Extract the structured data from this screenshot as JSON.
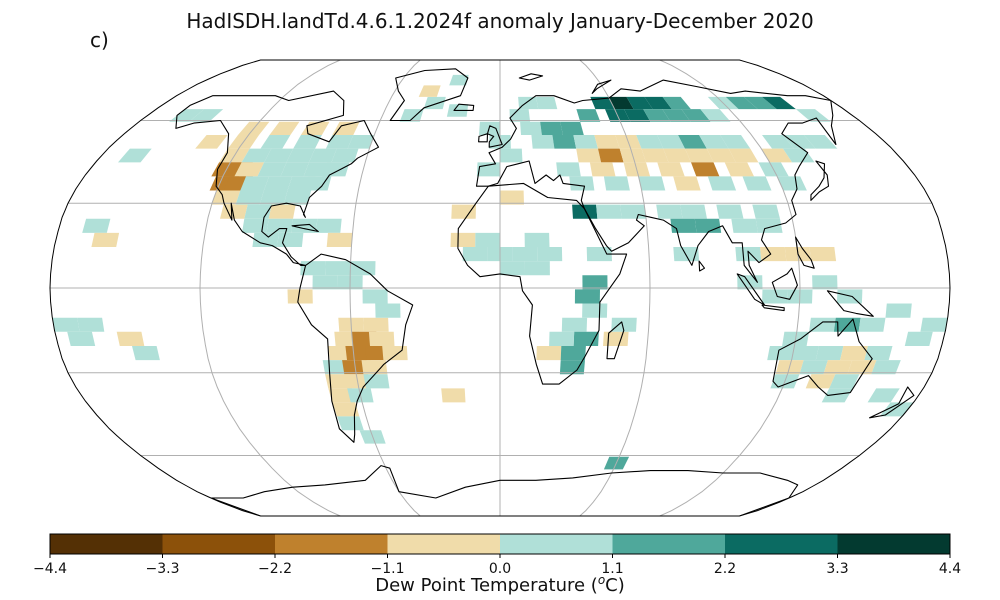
{
  "figure": {
    "title": "HadISDH.landTd.4.6.1.2024f anomaly January-December 2020",
    "panel_label": "c)"
  },
  "chart_data": {
    "type": "heatmap",
    "projection": "Robinson",
    "grid": true,
    "colorbar": {
      "label": "Dew Point Temperature (oC)",
      "label_parts": {
        "prefix": "Dew Point Temperature (",
        "superscript": "o",
        "suffix": "C)"
      },
      "ticks": [
        -4.4,
        -3.3,
        -2.2,
        -1.1,
        0.0,
        1.1,
        2.2,
        3.3,
        4.4
      ],
      "tick_labels": [
        "−4.4",
        "−3.3",
        "−2.2",
        "−1.1",
        "0.0",
        "1.1",
        "2.2",
        "3.3",
        "4.4"
      ],
      "bins": [
        {
          "from": -4.4,
          "to": -3.3,
          "color": "#543005"
        },
        {
          "from": -3.3,
          "to": -2.2,
          "color": "#8c510a"
        },
        {
          "from": -2.2,
          "to": -1.1,
          "color": "#bf812d"
        },
        {
          "from": -1.1,
          "to": 0.0,
          "color": "#f0dcaa"
        },
        {
          "from": 0.0,
          "to": 1.1,
          "color": "#b0e0d8"
        },
        {
          "from": 1.1,
          "to": 2.2,
          "color": "#4fa89b"
        },
        {
          "from": 2.2,
          "to": 3.3,
          "color": "#0b6b62"
        },
        {
          "from": 3.3,
          "to": 4.4,
          "color": "#033a30"
        }
      ]
    },
    "cells": [
      {
        "lon": -120,
        "lat": 57,
        "bin": 3
      },
      {
        "lon": -105,
        "lat": 57,
        "bin": 3
      },
      {
        "lon": -90,
        "lat": 57,
        "bin": 3
      },
      {
        "lon": -75,
        "lat": 57,
        "bin": 3
      },
      {
        "lon": -135,
        "lat": 52,
        "bin": 3
      },
      {
        "lon": -120,
        "lat": 52,
        "bin": 3
      },
      {
        "lon": -105,
        "lat": 52,
        "bin": 4
      },
      {
        "lon": -90,
        "lat": 52,
        "bin": 4
      },
      {
        "lon": -75,
        "lat": 52,
        "bin": 4
      },
      {
        "lon": -65,
        "lat": 52,
        "bin": 4
      },
      {
        "lon": -160,
        "lat": 62,
        "bin": 4
      },
      {
        "lon": -150,
        "lat": 62,
        "bin": 4
      },
      {
        "lon": -165,
        "lat": 47,
        "bin": 4
      },
      {
        "lon": -120,
        "lat": 47,
        "bin": 3
      },
      {
        "lon": -110,
        "lat": 47,
        "bin": 4
      },
      {
        "lon": -100,
        "lat": 47,
        "bin": 4
      },
      {
        "lon": -90,
        "lat": 47,
        "bin": 4
      },
      {
        "lon": -80,
        "lat": 47,
        "bin": 4
      },
      {
        "lon": -70,
        "lat": 47,
        "bin": 4
      },
      {
        "lon": -120,
        "lat": 42,
        "bin": 2
      },
      {
        "lon": -115,
        "lat": 42,
        "bin": 2
      },
      {
        "lon": -110,
        "lat": 42,
        "bin": 3
      },
      {
        "lon": -100,
        "lat": 42,
        "bin": 4
      },
      {
        "lon": -90,
        "lat": 42,
        "bin": 4
      },
      {
        "lon": -80,
        "lat": 42,
        "bin": 4
      },
      {
        "lon": -72,
        "lat": 42,
        "bin": 4
      },
      {
        "lon": -118,
        "lat": 37,
        "bin": 2
      },
      {
        "lon": -112,
        "lat": 37,
        "bin": 2
      },
      {
        "lon": -105,
        "lat": 37,
        "bin": 4
      },
      {
        "lon": -95,
        "lat": 37,
        "bin": 4
      },
      {
        "lon": -85,
        "lat": 37,
        "bin": 4
      },
      {
        "lon": -78,
        "lat": 37,
        "bin": 4
      },
      {
        "lon": -115,
        "lat": 32,
        "bin": 3
      },
      {
        "lon": -105,
        "lat": 32,
        "bin": 4
      },
      {
        "lon": -95,
        "lat": 32,
        "bin": 4
      },
      {
        "lon": -85,
        "lat": 32,
        "bin": 4
      },
      {
        "lon": -110,
        "lat": 27,
        "bin": 3
      },
      {
        "lon": -100,
        "lat": 27,
        "bin": 4
      },
      {
        "lon": -90,
        "lat": 27,
        "bin": 3
      },
      {
        "lon": -100,
        "lat": 22,
        "bin": 4
      },
      {
        "lon": -90,
        "lat": 22,
        "bin": 4
      },
      {
        "lon": -80,
        "lat": 22,
        "bin": 4
      },
      {
        "lon": -70,
        "lat": 22,
        "bin": 4
      },
      {
        "lon": -95,
        "lat": 17,
        "bin": 4
      },
      {
        "lon": -85,
        "lat": 17,
        "bin": 4
      },
      {
        "lon": -65,
        "lat": 17,
        "bin": 3
      },
      {
        "lon": -165,
        "lat": 22,
        "bin": 4
      },
      {
        "lon": -160,
        "lat": 17,
        "bin": 3
      },
      {
        "lon": -75,
        "lat": 7,
        "bin": 4
      },
      {
        "lon": -65,
        "lat": 7,
        "bin": 4
      },
      {
        "lon": -55,
        "lat": 7,
        "bin": 4
      },
      {
        "lon": -80,
        "lat": -3,
        "bin": 3
      },
      {
        "lon": -70,
        "lat": 2,
        "bin": 4
      },
      {
        "lon": -60,
        "lat": 2,
        "bin": 4
      },
      {
        "lon": -50,
        "lat": -3,
        "bin": 4
      },
      {
        "lon": -60,
        "lat": -13,
        "bin": 3
      },
      {
        "lon": -50,
        "lat": -13,
        "bin": 3
      },
      {
        "lon": -45,
        "lat": -8,
        "bin": 4
      },
      {
        "lon": -62,
        "lat": -18,
        "bin": 3
      },
      {
        "lon": -55,
        "lat": -18,
        "bin": 2
      },
      {
        "lon": -48,
        "lat": -18,
        "bin": 3
      },
      {
        "lon": -65,
        "lat": -23,
        "bin": 3
      },
      {
        "lon": -58,
        "lat": -23,
        "bin": 2
      },
      {
        "lon": -50,
        "lat": -23,
        "bin": 2
      },
      {
        "lon": -43,
        "lat": -23,
        "bin": 3
      },
      {
        "lon": -68,
        "lat": -28,
        "bin": 4
      },
      {
        "lon": -60,
        "lat": -28,
        "bin": 2
      },
      {
        "lon": -52,
        "lat": -28,
        "bin": 3
      },
      {
        "lon": -68,
        "lat": -33,
        "bin": 3
      },
      {
        "lon": -60,
        "lat": -33,
        "bin": 3
      },
      {
        "lon": -52,
        "lat": -33,
        "bin": 4
      },
      {
        "lon": -68,
        "lat": -38,
        "bin": 3
      },
      {
        "lon": -60,
        "lat": -38,
        "bin": 4
      },
      {
        "lon": -68,
        "lat": -43,
        "bin": 3
      },
      {
        "lon": -68,
        "lat": -48,
        "bin": 4
      },
      {
        "lon": -60,
        "lat": -53,
        "bin": 4
      },
      {
        "lon": -20,
        "lat": -38,
        "bin": 3
      },
      {
        "lon": -175,
        "lat": -13,
        "bin": 4
      },
      {
        "lon": -165,
        "lat": -13,
        "bin": 4
      },
      {
        "lon": -170,
        "lat": -18,
        "bin": 4
      },
      {
        "lon": -150,
        "lat": -18,
        "bin": 3
      },
      {
        "lon": -145,
        "lat": -23,
        "bin": 4
      },
      {
        "lon": -45,
        "lat": 62,
        "bin": 4
      },
      {
        "lon": -35,
        "lat": 67,
        "bin": 4
      },
      {
        "lon": -40,
        "lat": 72,
        "bin": 3
      },
      {
        "lon": -25,
        "lat": 77,
        "bin": 4
      },
      {
        "lon": -22,
        "lat": 64,
        "bin": 4
      },
      {
        "lon": -5,
        "lat": 57,
        "bin": 4
      },
      {
        "lon": 0,
        "lat": 52,
        "bin": 4
      },
      {
        "lon": 5,
        "lat": 47,
        "bin": 4
      },
      {
        "lon": -5,
        "lat": 42,
        "bin": 4
      },
      {
        "lon": 15,
        "lat": 67,
        "bin": 4
      },
      {
        "lon": 25,
        "lat": 67,
        "bin": 4
      },
      {
        "lon": 10,
        "lat": 62,
        "bin": 4
      },
      {
        "lon": 15,
        "lat": 57,
        "bin": 4
      },
      {
        "lon": 25,
        "lat": 57,
        "bin": 5
      },
      {
        "lon": 35,
        "lat": 57,
        "bin": 5
      },
      {
        "lon": 45,
        "lat": 62,
        "bin": 5
      },
      {
        "lon": 55,
        "lat": 67,
        "bin": 6
      },
      {
        "lon": 65,
        "lat": 67,
        "bin": 7
      },
      {
        "lon": 75,
        "lat": 67,
        "bin": 6
      },
      {
        "lon": 85,
        "lat": 67,
        "bin": 6
      },
      {
        "lon": 95,
        "lat": 67,
        "bin": 5
      },
      {
        "lon": 60,
        "lat": 62,
        "bin": 6
      },
      {
        "lon": 70,
        "lat": 62,
        "bin": 6
      },
      {
        "lon": 80,
        "lat": 62,
        "bin": 5
      },
      {
        "lon": 90,
        "lat": 62,
        "bin": 5
      },
      {
        "lon": 100,
        "lat": 62,
        "bin": 5
      },
      {
        "lon": 110,
        "lat": 62,
        "bin": 4
      },
      {
        "lon": 120,
        "lat": 67,
        "bin": 4
      },
      {
        "lon": 130,
        "lat": 67,
        "bin": 5
      },
      {
        "lon": 140,
        "lat": 67,
        "bin": 5
      },
      {
        "lon": 150,
        "lat": 67,
        "bin": 6
      },
      {
        "lon": 160,
        "lat": 62,
        "bin": 4
      },
      {
        "lon": 20,
        "lat": 52,
        "bin": 4
      },
      {
        "lon": 30,
        "lat": 52,
        "bin": 5
      },
      {
        "lon": 40,
        "lat": 52,
        "bin": 4
      },
      {
        "lon": 50,
        "lat": 52,
        "bin": 3
      },
      {
        "lon": 60,
        "lat": 52,
        "bin": 3
      },
      {
        "lon": 70,
        "lat": 52,
        "bin": 4
      },
      {
        "lon": 80,
        "lat": 52,
        "bin": 4
      },
      {
        "lon": 90,
        "lat": 52,
        "bin": 5
      },
      {
        "lon": 100,
        "lat": 52,
        "bin": 4
      },
      {
        "lon": 110,
        "lat": 52,
        "bin": 4
      },
      {
        "lon": 130,
        "lat": 52,
        "bin": 4
      },
      {
        "lon": 140,
        "lat": 52,
        "bin": 4
      },
      {
        "lon": 150,
        "lat": 52,
        "bin": 4
      },
      {
        "lon": 40,
        "lat": 47,
        "bin": 3
      },
      {
        "lon": 50,
        "lat": 47,
        "bin": 2
      },
      {
        "lon": 60,
        "lat": 47,
        "bin": 3
      },
      {
        "lon": 70,
        "lat": 47,
        "bin": 3
      },
      {
        "lon": 80,
        "lat": 47,
        "bin": 3
      },
      {
        "lon": 90,
        "lat": 47,
        "bin": 3
      },
      {
        "lon": 100,
        "lat": 47,
        "bin": 3
      },
      {
        "lon": 110,
        "lat": 47,
        "bin": 3
      },
      {
        "lon": 125,
        "lat": 47,
        "bin": 3
      },
      {
        "lon": 135,
        "lat": 47,
        "bin": 4
      },
      {
        "lon": 30,
        "lat": 42,
        "bin": 4
      },
      {
        "lon": 45,
        "lat": 42,
        "bin": 3
      },
      {
        "lon": 60,
        "lat": 42,
        "bin": 3
      },
      {
        "lon": 75,
        "lat": 42,
        "bin": 3
      },
      {
        "lon": 90,
        "lat": 42,
        "bin": 2
      },
      {
        "lon": 105,
        "lat": 42,
        "bin": 3
      },
      {
        "lon": 120,
        "lat": 42,
        "bin": 4
      },
      {
        "lon": 35,
        "lat": 37,
        "bin": 4
      },
      {
        "lon": 50,
        "lat": 37,
        "bin": 4
      },
      {
        "lon": 65,
        "lat": 37,
        "bin": 4
      },
      {
        "lon": 80,
        "lat": 37,
        "bin": 3
      },
      {
        "lon": 95,
        "lat": 37,
        "bin": 4
      },
      {
        "lon": 110,
        "lat": 37,
        "bin": 4
      },
      {
        "lon": 125,
        "lat": 37,
        "bin": 4
      },
      {
        "lon": -15,
        "lat": 27,
        "bin": 3
      },
      {
        "lon": 5,
        "lat": 32,
        "bin": 3
      },
      {
        "lon": 35,
        "lat": 27,
        "bin": 6
      },
      {
        "lon": 45,
        "lat": 27,
        "bin": 4
      },
      {
        "lon": 55,
        "lat": 27,
        "bin": 4
      },
      {
        "lon": 70,
        "lat": 27,
        "bin": 4
      },
      {
        "lon": 80,
        "lat": 27,
        "bin": 4
      },
      {
        "lon": 95,
        "lat": 27,
        "bin": 4
      },
      {
        "lon": 110,
        "lat": 27,
        "bin": 4
      },
      {
        "lon": -15,
        "lat": 17,
        "bin": 3
      },
      {
        "lon": -5,
        "lat": 17,
        "bin": 4
      },
      {
        "lon": 15,
        "lat": 17,
        "bin": 4
      },
      {
        "lon": 75,
        "lat": 22,
        "bin": 5
      },
      {
        "lon": 85,
        "lat": 22,
        "bin": 5
      },
      {
        "lon": 100,
        "lat": 22,
        "bin": 4
      },
      {
        "lon": 110,
        "lat": 22,
        "bin": 4
      },
      {
        "lon": -10,
        "lat": 12,
        "bin": 4
      },
      {
        "lon": 0,
        "lat": 12,
        "bin": 4
      },
      {
        "lon": 10,
        "lat": 12,
        "bin": 4
      },
      {
        "lon": 20,
        "lat": 12,
        "bin": 4
      },
      {
        "lon": 40,
        "lat": 12,
        "bin": 4
      },
      {
        "lon": 75,
        "lat": 12,
        "bin": 4
      },
      {
        "lon": 100,
        "lat": 12,
        "bin": 4
      },
      {
        "lon": 110,
        "lat": 12,
        "bin": 3
      },
      {
        "lon": 120,
        "lat": 12,
        "bin": 3
      },
      {
        "lon": 130,
        "lat": 12,
        "bin": 3
      },
      {
        "lon": 5,
        "lat": 7,
        "bin": 4
      },
      {
        "lon": 15,
        "lat": 7,
        "bin": 4
      },
      {
        "lon": 38,
        "lat": 2,
        "bin": 5
      },
      {
        "lon": 35,
        "lat": -3,
        "bin": 5
      },
      {
        "lon": 38,
        "lat": -8,
        "bin": 4
      },
      {
        "lon": 30,
        "lat": -13,
        "bin": 4
      },
      {
        "lon": 35,
        "lat": -18,
        "bin": 5
      },
      {
        "lon": 25,
        "lat": -18,
        "bin": 4
      },
      {
        "lon": 47,
        "lat": -18,
        "bin": 3
      },
      {
        "lon": 50,
        "lat": -13,
        "bin": 4
      },
      {
        "lon": 20,
        "lat": -23,
        "bin": 3
      },
      {
        "lon": 30,
        "lat": -23,
        "bin": 5
      },
      {
        "lon": 30,
        "lat": -28,
        "bin": 5
      },
      {
        "lon": 100,
        "lat": 2,
        "bin": 4
      },
      {
        "lon": 110,
        "lat": -3,
        "bin": 4
      },
      {
        "lon": 120,
        "lat": -3,
        "bin": 4
      },
      {
        "lon": 130,
        "lat": 2,
        "bin": 4
      },
      {
        "lon": 140,
        "lat": -3,
        "bin": 4
      },
      {
        "lon": 120,
        "lat": -18,
        "bin": 4
      },
      {
        "lon": 130,
        "lat": -13,
        "bin": 4
      },
      {
        "lon": 140,
        "lat": -13,
        "bin": 5
      },
      {
        "lon": 150,
        "lat": -13,
        "bin": 4
      },
      {
        "lon": 115,
        "lat": -23,
        "bin": 4
      },
      {
        "lon": 125,
        "lat": -23,
        "bin": 4
      },
      {
        "lon": 135,
        "lat": -23,
        "bin": 4
      },
      {
        "lon": 145,
        "lat": -23,
        "bin": 3
      },
      {
        "lon": 155,
        "lat": -23,
        "bin": 4
      },
      {
        "lon": 120,
        "lat": -28,
        "bin": 3
      },
      {
        "lon": 130,
        "lat": -28,
        "bin": 4
      },
      {
        "lon": 140,
        "lat": -28,
        "bin": 3
      },
      {
        "lon": 150,
        "lat": -28,
        "bin": 3
      },
      {
        "lon": 160,
        "lat": -28,
        "bin": 4
      },
      {
        "lon": 120,
        "lat": -33,
        "bin": 4
      },
      {
        "lon": 135,
        "lat": -33,
        "bin": 3
      },
      {
        "lon": 145,
        "lat": -33,
        "bin": 4
      },
      {
        "lon": 145,
        "lat": -38,
        "bin": 4
      },
      {
        "lon": 165,
        "lat": -38,
        "bin": 4
      },
      {
        "lon": 175,
        "lat": -43,
        "bin": 4
      },
      {
        "lon": 170,
        "lat": -18,
        "bin": 4
      },
      {
        "lon": 175,
        "lat": -13,
        "bin": 4
      },
      {
        "lon": 160,
        "lat": -8,
        "bin": 4
      },
      {
        "lon": 60,
        "lat": -63,
        "bin": 5
      }
    ]
  }
}
